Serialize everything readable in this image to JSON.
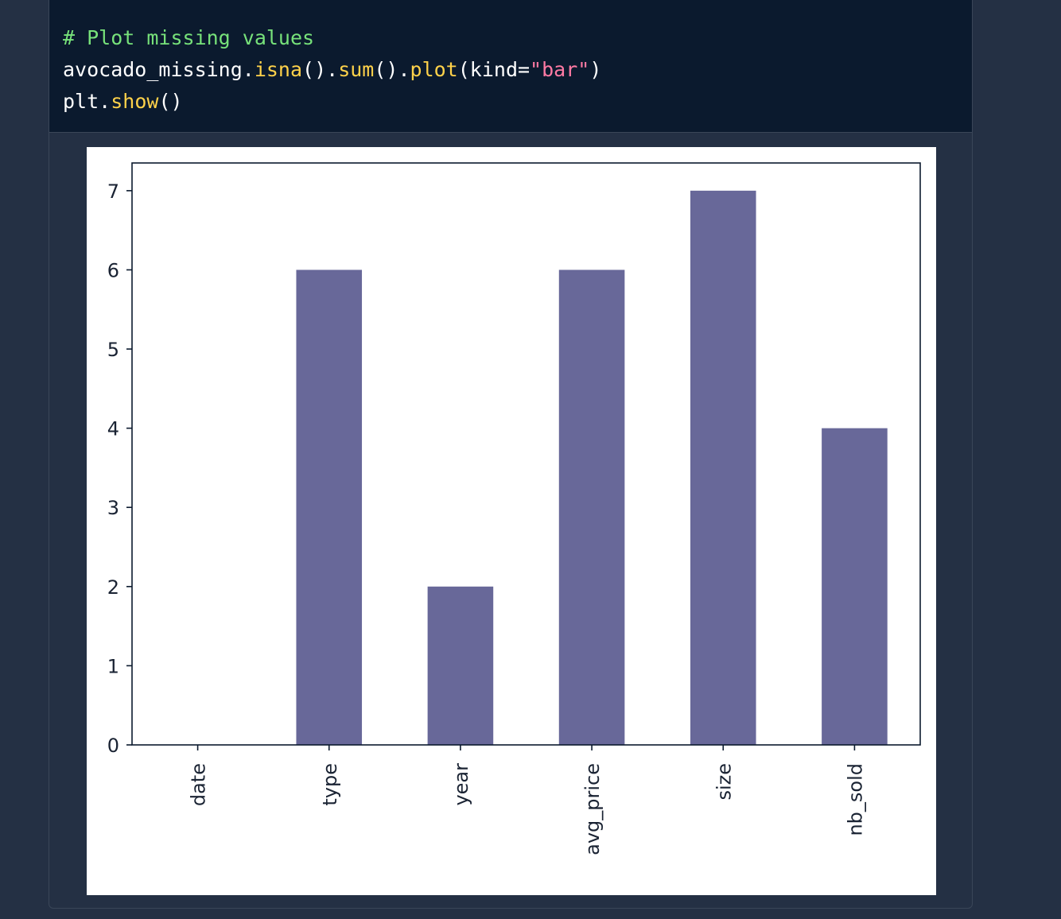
{
  "code": {
    "lines": [
      [
        {
          "cls": "comment",
          "text": "# Plot missing values"
        }
      ],
      [
        {
          "cls": "plain",
          "text": "avocado_missing."
        },
        {
          "cls": "fn",
          "text": "isna"
        },
        {
          "cls": "plain",
          "text": "()."
        },
        {
          "cls": "fn",
          "text": "sum"
        },
        {
          "cls": "plain",
          "text": "()."
        },
        {
          "cls": "fn",
          "text": "plot"
        },
        {
          "cls": "plain",
          "text": "(kind="
        },
        {
          "cls": "str",
          "text": "\"bar\""
        },
        {
          "cls": "plain",
          "text": ")"
        }
      ],
      [
        {
          "cls": "plain",
          "text": "plt."
        },
        {
          "cls": "fn",
          "text": "show"
        },
        {
          "cls": "plain",
          "text": "()"
        }
      ]
    ]
  },
  "colors": {
    "background": "#243044",
    "code_background": "#0b1a2e",
    "bar": "#686899",
    "axis": "#0b1a2e"
  },
  "chart_data": {
    "type": "bar",
    "categories": [
      "date",
      "type",
      "year",
      "avg_price",
      "size",
      "nb_sold"
    ],
    "values": [
      0,
      6,
      2,
      6,
      7,
      4
    ],
    "yticks": [
      0,
      1,
      2,
      3,
      4,
      5,
      6,
      7
    ],
    "ylim": [
      0,
      7.35
    ],
    "xlabel": "",
    "ylabel": "",
    "title": "",
    "grid": false,
    "legend": false
  }
}
